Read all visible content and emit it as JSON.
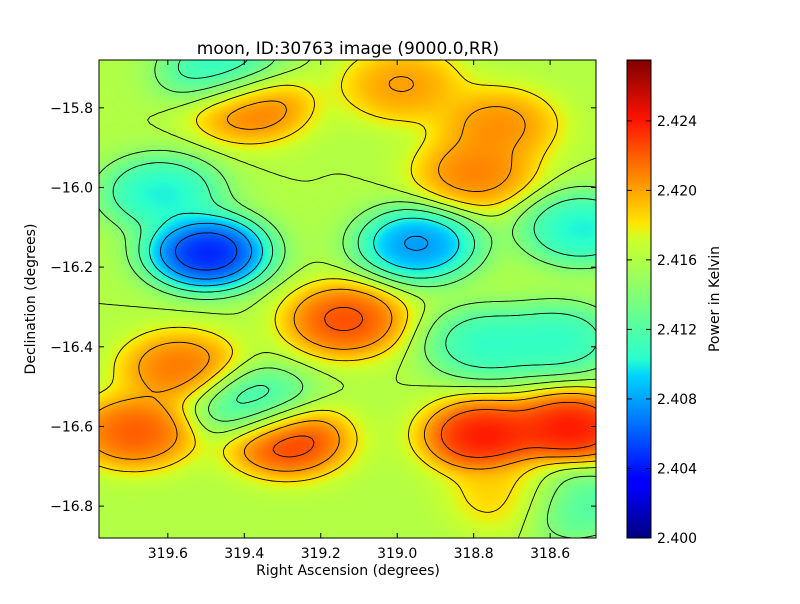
{
  "chart_data": {
    "type": "heatmap",
    "title": "moon, ID:30763 image (9000.0,RR)",
    "xlabel": "Right Ascension (degrees)",
    "ylabel": "Declination (degrees)",
    "colorbar_label": "Power in Kelvin",
    "xlim": [
      319.78,
      318.48
    ],
    "ylim": [
      -16.88,
      -15.68
    ],
    "x_ticks": [
      319.6,
      319.4,
      319.2,
      319.0,
      318.8,
      318.6
    ],
    "x_tick_labels": [
      "319.6",
      "319.4",
      "319.2",
      "319.0",
      "318.8",
      "318.6"
    ],
    "y_ticks": [
      -15.8,
      -16.0,
      -16.2,
      -16.4,
      -16.6,
      -16.8
    ],
    "y_tick_labels": [
      "−15.8",
      "−16.0",
      "−16.2",
      "−16.4",
      "−16.6",
      "−16.8"
    ],
    "colorbar_range": [
      2.4,
      2.4275
    ],
    "colorbar_ticks": [
      2.4,
      2.404,
      2.408,
      2.412,
      2.416,
      2.42,
      2.424
    ],
    "colorbar_tick_labels": [
      "2.400",
      "2.404",
      "2.408",
      "2.412",
      "2.416",
      "2.420",
      "2.424"
    ],
    "colormap": "jet",
    "contours": true,
    "features": [
      {
        "ra": 319.5,
        "dec": -16.16,
        "value": 2.4005,
        "kind": "min"
      },
      {
        "ra": 318.95,
        "dec": -16.14,
        "value": 2.405,
        "kind": "min"
      },
      {
        "ra": 318.52,
        "dec": -16.1,
        "value": 2.408,
        "kind": "min"
      },
      {
        "ra": 319.62,
        "dec": -16.01,
        "value": 2.408,
        "kind": "min"
      },
      {
        "ra": 319.38,
        "dec": -16.54,
        "value": 2.409,
        "kind": "min"
      },
      {
        "ra": 319.46,
        "dec": -15.71,
        "value": 2.408,
        "kind": "min"
      },
      {
        "ra": 318.77,
        "dec": -16.39,
        "value": 2.409,
        "kind": "min"
      },
      {
        "ra": 318.58,
        "dec": -16.38,
        "value": 2.409,
        "kind": "min"
      },
      {
        "ra": 318.55,
        "dec": -16.79,
        "value": 2.41,
        "kind": "min"
      },
      {
        "ra": 319.14,
        "dec": -16.33,
        "value": 2.4245,
        "kind": "max"
      },
      {
        "ra": 319.29,
        "dec": -16.63,
        "value": 2.4255,
        "kind": "max"
      },
      {
        "ra": 318.78,
        "dec": -16.62,
        "value": 2.4265,
        "kind": "max"
      },
      {
        "ra": 318.55,
        "dec": -16.6,
        "value": 2.4265,
        "kind": "max"
      },
      {
        "ra": 319.69,
        "dec": -16.61,
        "value": 2.424,
        "kind": "max"
      },
      {
        "ra": 319.57,
        "dec": -16.45,
        "value": 2.423,
        "kind": "max"
      },
      {
        "ra": 319.39,
        "dec": -15.79,
        "value": 2.4235,
        "kind": "max"
      },
      {
        "ra": 318.99,
        "dec": -15.74,
        "value": 2.4215,
        "kind": "max"
      },
      {
        "ra": 318.74,
        "dec": -15.84,
        "value": 2.422,
        "kind": "max"
      },
      {
        "ra": 318.8,
        "dec": -15.96,
        "value": 2.4225,
        "kind": "max"
      },
      {
        "ra": 318.7,
        "dec": -16.77,
        "value": 2.42,
        "kind": "max"
      }
    ]
  }
}
